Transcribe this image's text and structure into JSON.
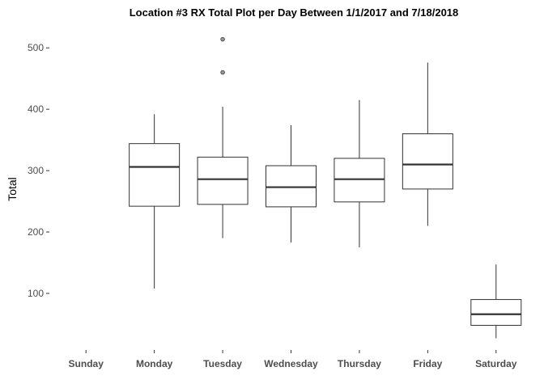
{
  "chart_data": {
    "type": "box",
    "title": "Location #3 RX Total Plot per Day Between 1/1/2017 and 7/18/2018",
    "xlabel": "",
    "ylabel": "Total",
    "ylim": [
      0,
      540
    ],
    "yticks": [
      100,
      200,
      300,
      400,
      500
    ],
    "categories": [
      "Sunday",
      "Monday",
      "Tuesday",
      "Wednesday",
      "Thursday",
      "Friday",
      "Saturday"
    ],
    "boxes": [
      null,
      {
        "whisker_low": 108,
        "q1": 242,
        "median": 306,
        "q3": 344,
        "whisker_high": 392,
        "outliers": []
      },
      {
        "whisker_low": 190,
        "q1": 245,
        "median": 286,
        "q3": 322,
        "whisker_high": 404,
        "outliers": [
          460,
          514
        ]
      },
      {
        "whisker_low": 183,
        "q1": 241,
        "median": 273,
        "q3": 308,
        "whisker_high": 374,
        "outliers": []
      },
      {
        "whisker_low": 175,
        "q1": 249,
        "median": 286,
        "q3": 320,
        "whisker_high": 415,
        "outliers": []
      },
      {
        "whisker_low": 210,
        "q1": 270,
        "median": 310,
        "q3": 360,
        "whisker_high": 476,
        "outliers": []
      },
      {
        "whisker_low": 27,
        "q1": 48,
        "median": 66,
        "q3": 90,
        "whisker_high": 147,
        "outliers": []
      }
    ],
    "grid": false,
    "legend": "none",
    "box_fill": "#ffffff",
    "line_color": "#333333",
    "outlier_fill": "#999999"
  }
}
